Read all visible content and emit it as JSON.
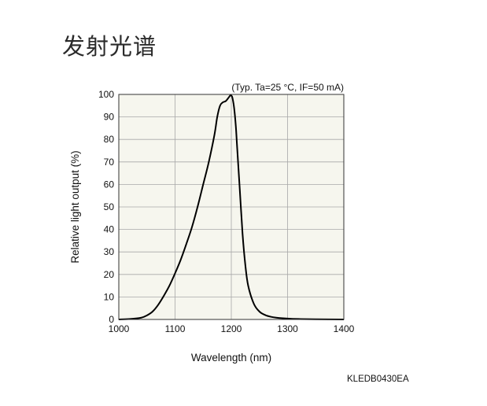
{
  "page": {
    "title": "发射光谱",
    "doc_code": "KLEDB0430EA"
  },
  "colors": {
    "plot_background": "#f6f6ee",
    "grid": "#a8a8a8",
    "curve": "#000000"
  },
  "chart_data": {
    "type": "line",
    "title": "",
    "conditions": "(Typ. Ta=25 °C, IF=50 mA)",
    "xlabel": "Wavelength (nm)",
    "ylabel": "Relative light output (%)",
    "xlim": [
      1000,
      1400
    ],
    "ylim": [
      0,
      100
    ],
    "xticks": [
      1000,
      1100,
      1200,
      1300,
      1400
    ],
    "yticks": [
      0,
      10,
      20,
      30,
      40,
      50,
      60,
      70,
      80,
      90,
      100
    ],
    "grid": true,
    "legend": "none",
    "series": [
      {
        "x": [
          1000,
          1020,
          1040,
          1050,
          1060,
          1070,
          1080,
          1090,
          1100,
          1110,
          1120,
          1130,
          1140,
          1150,
          1160,
          1170,
          1175,
          1180,
          1185,
          1190,
          1195,
          1198,
          1200,
          1202,
          1205,
          1208,
          1210,
          1215,
          1220,
          1225,
          1230,
          1240,
          1250,
          1260,
          1270,
          1280,
          1300,
          1320,
          1350,
          1400
        ],
        "y": [
          0,
          0.2,
          0.8,
          1.8,
          3.5,
          6.5,
          10.5,
          15,
          20.5,
          26.5,
          33.5,
          41,
          50,
          60,
          70,
          82,
          90,
          95,
          96.5,
          97,
          98.5,
          99.5,
          99.5,
          98.5,
          94,
          86,
          78,
          58,
          38,
          24,
          15,
          7,
          3.5,
          2,
          1.2,
          0.8,
          0.4,
          0.2,
          0.1,
          0
        ]
      }
    ]
  }
}
